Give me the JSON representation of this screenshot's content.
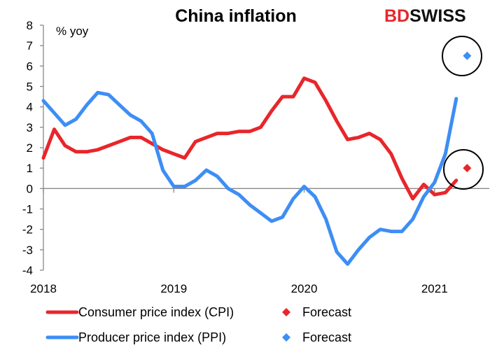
{
  "logo": {
    "prefix": "BD",
    "suffix": "SWISS",
    "prefix_color": "#e8262b",
    "suffix_color": "#111111"
  },
  "chart_data": {
    "type": "line",
    "title": "China inflation",
    "ylabel": "% yoy",
    "ylim": [
      -4,
      8
    ],
    "yticks": [
      -4,
      -3,
      -2,
      -1,
      0,
      1,
      2,
      3,
      4,
      5,
      6,
      7,
      8
    ],
    "xlim": [
      2018.0,
      2021.42
    ],
    "xticks": [
      {
        "value": 2018,
        "label": "2018"
      },
      {
        "value": 2019,
        "label": "2019"
      },
      {
        "value": 2020,
        "label": "2020"
      },
      {
        "value": 2021,
        "label": "2021"
      }
    ],
    "series": [
      {
        "name": "Consumer price index (CPI)",
        "color": "#e8262b",
        "x": [
          2018.0,
          2018.0833,
          2018.1667,
          2018.25,
          2018.3333,
          2018.4167,
          2018.5,
          2018.5833,
          2018.6667,
          2018.75,
          2018.8333,
          2018.9167,
          2019.0,
          2019.0833,
          2019.1667,
          2019.25,
          2019.3333,
          2019.4167,
          2019.5,
          2019.5833,
          2019.6667,
          2019.75,
          2019.8333,
          2019.9167,
          2020.0,
          2020.0833,
          2020.1667,
          2020.25,
          2020.3333,
          2020.4167,
          2020.5,
          2020.5833,
          2020.6667,
          2020.75,
          2020.8333,
          2020.9167,
          2021.0,
          2021.0833,
          2021.1667
        ],
        "values": [
          1.5,
          2.9,
          2.1,
          1.8,
          1.8,
          1.9,
          2.1,
          2.3,
          2.5,
          2.5,
          2.2,
          1.9,
          1.7,
          1.5,
          2.3,
          2.5,
          2.7,
          2.7,
          2.8,
          2.8,
          3.0,
          3.8,
          4.5,
          4.5,
          5.4,
          5.2,
          4.3,
          3.3,
          2.4,
          2.5,
          2.7,
          2.4,
          1.7,
          0.5,
          -0.5,
          0.2,
          -0.3,
          -0.2,
          0.4
        ]
      },
      {
        "name": "Producer price index (PPI)",
        "color": "#3d8ef5",
        "x": [
          2018.0,
          2018.0833,
          2018.1667,
          2018.25,
          2018.3333,
          2018.4167,
          2018.5,
          2018.5833,
          2018.6667,
          2018.75,
          2018.8333,
          2018.9167,
          2019.0,
          2019.0833,
          2019.1667,
          2019.25,
          2019.3333,
          2019.4167,
          2019.5,
          2019.5833,
          2019.6667,
          2019.75,
          2019.8333,
          2019.9167,
          2020.0,
          2020.0833,
          2020.1667,
          2020.25,
          2020.3333,
          2020.4167,
          2020.5,
          2020.5833,
          2020.6667,
          2020.75,
          2020.8333,
          2020.9167,
          2021.0,
          2021.0833,
          2021.1667
        ],
        "values": [
          4.3,
          3.7,
          3.1,
          3.4,
          4.1,
          4.7,
          4.6,
          4.1,
          3.6,
          3.3,
          2.7,
          0.9,
          0.1,
          0.1,
          0.4,
          0.9,
          0.6,
          0.0,
          -0.3,
          -0.8,
          -1.2,
          -1.6,
          -1.4,
          -0.5,
          0.1,
          -0.4,
          -1.5,
          -3.1,
          -3.7,
          -3.0,
          -2.4,
          -2.0,
          -2.1,
          -2.1,
          -1.5,
          -0.4,
          0.3,
          1.7,
          4.4
        ]
      }
    ],
    "forecasts": [
      {
        "name": "Forecast",
        "series": "Consumer price index (CPI)",
        "x": 2021.25,
        "value": 1.0,
        "color": "#e8262b"
      },
      {
        "name": "Forecast",
        "series": "Producer price index (PPI)",
        "x": 2021.25,
        "value": 6.5,
        "color": "#3d8ef5"
      }
    ],
    "legend": [
      {
        "label": "Consumer price index (CPI)",
        "kind": "line",
        "color": "#e8262b"
      },
      {
        "label": "Forecast",
        "kind": "marker",
        "color": "#e8262b"
      },
      {
        "label": "Producer price index (PPI)",
        "kind": "line",
        "color": "#3d8ef5"
      },
      {
        "label": "Forecast",
        "kind": "marker",
        "color": "#3d8ef5"
      }
    ],
    "legend_position": "bottom",
    "grid": false
  }
}
